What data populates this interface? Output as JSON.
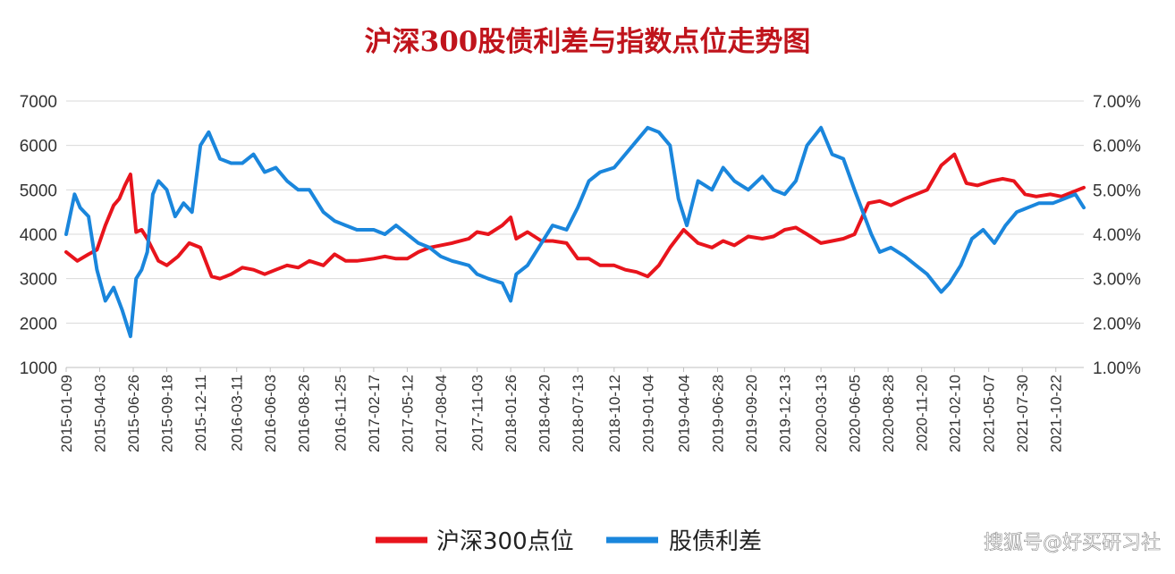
{
  "chart_data": {
    "type": "line",
    "title": "沪深300股债利差与指数点位走势图",
    "xlabel": "",
    "ylabel_left": "",
    "ylabel_right": "",
    "ylim_left": [
      1000,
      7000
    ],
    "yticks_left": [
      "7000",
      "6000",
      "5000",
      "4000",
      "3000",
      "2000",
      "1000"
    ],
    "ylim_right": [
      0.01,
      0.07
    ],
    "yticks_right": [
      "7.00%",
      "6.00%",
      "5.00%",
      "4.00%",
      "3.00%",
      "2.00%",
      "1.00%"
    ],
    "x_start": "2015-01-09",
    "x_end": "2021-12-31",
    "x_tick_labels": [
      "2015-01-09",
      "2015-04-03",
      "2015-06-26",
      "2015-09-18",
      "2015-12-11",
      "2016-03-11",
      "2016-06-03",
      "2016-08-26",
      "2016-11-25",
      "2017-02-17",
      "2017-05-12",
      "2017-08-04",
      "2017-11-03",
      "2018-01-26",
      "2018-04-20",
      "2018-07-13",
      "2018-10-12",
      "2019-01-04",
      "2019-04-04",
      "2019-06-28",
      "2019-09-20",
      "2019-12-13",
      "2020-03-13",
      "2020-06-05",
      "2020-08-28",
      "2020-11-20",
      "2021-02-10",
      "2021-05-07",
      "2021-07-30",
      "2021-10-22"
    ],
    "grid": true,
    "legend_position": "bottom",
    "colors": {
      "index": "#e8141c",
      "spread": "#1a86dc",
      "title": "#c0141c"
    },
    "series": [
      {
        "name": "沪深300点位",
        "axis": "left",
        "x": [
          "2015-01-09",
          "2015-02-06",
          "2015-03-06",
          "2015-03-27",
          "2015-04-17",
          "2015-05-08",
          "2015-05-22",
          "2015-06-05",
          "2015-06-19",
          "2015-07-03",
          "2015-07-17",
          "2015-07-31",
          "2015-08-14",
          "2015-08-28",
          "2015-09-18",
          "2015-10-16",
          "2015-11-13",
          "2015-12-11",
          "2016-01-08",
          "2016-01-29",
          "2016-02-26",
          "2016-03-25",
          "2016-04-22",
          "2016-05-20",
          "2016-06-17",
          "2016-07-15",
          "2016-08-12",
          "2016-09-09",
          "2016-10-14",
          "2016-11-11",
          "2016-12-09",
          "2017-01-06",
          "2017-02-17",
          "2017-03-17",
          "2017-04-14",
          "2017-05-12",
          "2017-06-09",
          "2017-07-07",
          "2017-08-04",
          "2017-09-01",
          "2017-10-13",
          "2017-11-03",
          "2017-12-01",
          "2018-01-05",
          "2018-01-26",
          "2018-02-09",
          "2018-03-09",
          "2018-04-13",
          "2018-05-11",
          "2018-06-15",
          "2018-07-13",
          "2018-08-10",
          "2018-09-07",
          "2018-10-12",
          "2018-11-09",
          "2018-12-07",
          "2019-01-04",
          "2019-02-01",
          "2019-03-01",
          "2019-04-04",
          "2019-05-10",
          "2019-06-14",
          "2019-07-12",
          "2019-08-09",
          "2019-09-13",
          "2019-10-18",
          "2019-11-15",
          "2019-12-13",
          "2020-01-10",
          "2020-02-07",
          "2020-03-13",
          "2020-04-10",
          "2020-05-08",
          "2020-06-05",
          "2020-07-10",
          "2020-08-07",
          "2020-09-04",
          "2020-10-09",
          "2020-11-06",
          "2020-12-04",
          "2021-01-08",
          "2021-02-10",
          "2021-03-12",
          "2021-04-09",
          "2021-05-14",
          "2021-06-11",
          "2021-07-09",
          "2021-08-06",
          "2021-09-03",
          "2021-10-08",
          "2021-11-05",
          "2021-12-03",
          "2021-12-31"
        ],
        "values": [
          3600,
          3400,
          3550,
          3650,
          4200,
          4650,
          4800,
          5100,
          5350,
          4050,
          4100,
          3900,
          3650,
          3400,
          3300,
          3500,
          3800,
          3700,
          3050,
          3000,
          3100,
          3250,
          3200,
          3100,
          3200,
          3300,
          3250,
          3400,
          3300,
          3550,
          3400,
          3400,
          3450,
          3500,
          3450,
          3450,
          3600,
          3700,
          3750,
          3800,
          3900,
          4050,
          4000,
          4200,
          4380,
          3900,
          4050,
          3850,
          3850,
          3800,
          3450,
          3450,
          3300,
          3300,
          3200,
          3150,
          3050,
          3300,
          3700,
          4100,
          3800,
          3700,
          3850,
          3750,
          3950,
          3900,
          3950,
          4100,
          4150,
          4000,
          3800,
          3850,
          3900,
          4000,
          4700,
          4750,
          4650,
          4800,
          4900,
          5000,
          5550,
          5800,
          5150,
          5100,
          5200,
          5250,
          5200,
          4900,
          4850,
          4900,
          4850,
          4950,
          5050
        ]
      },
      {
        "name": "股债利差",
        "axis": "right",
        "x": [
          "2015-01-09",
          "2015-01-30",
          "2015-02-13",
          "2015-03-06",
          "2015-03-27",
          "2015-04-17",
          "2015-05-08",
          "2015-05-29",
          "2015-06-19",
          "2015-07-03",
          "2015-07-17",
          "2015-07-31",
          "2015-08-14",
          "2015-08-28",
          "2015-09-18",
          "2015-10-09",
          "2015-10-30",
          "2015-11-20",
          "2015-12-11",
          "2016-01-01",
          "2016-01-15",
          "2016-01-29",
          "2016-02-26",
          "2016-03-25",
          "2016-04-22",
          "2016-05-20",
          "2016-06-17",
          "2016-07-15",
          "2016-08-12",
          "2016-09-09",
          "2016-10-14",
          "2016-11-11",
          "2016-12-09",
          "2017-01-06",
          "2017-02-17",
          "2017-03-17",
          "2017-04-14",
          "2017-05-12",
          "2017-06-09",
          "2017-07-07",
          "2017-08-04",
          "2017-09-01",
          "2017-10-13",
          "2017-11-03",
          "2017-12-01",
          "2018-01-05",
          "2018-01-26",
          "2018-02-09",
          "2018-03-09",
          "2018-04-13",
          "2018-05-11",
          "2018-06-15",
          "2018-07-13",
          "2018-08-10",
          "2018-09-07",
          "2018-10-12",
          "2018-11-09",
          "2018-12-07",
          "2019-01-04",
          "2019-02-01",
          "2019-03-01",
          "2019-03-22",
          "2019-04-12",
          "2019-05-10",
          "2019-06-14",
          "2019-07-12",
          "2019-08-09",
          "2019-09-13",
          "2019-10-18",
          "2019-11-15",
          "2019-12-13",
          "2020-01-10",
          "2020-02-07",
          "2020-03-13",
          "2020-04-10",
          "2020-05-08",
          "2020-06-05",
          "2020-06-26",
          "2020-07-17",
          "2020-08-07",
          "2020-09-04",
          "2020-10-09",
          "2020-11-06",
          "2020-12-04",
          "2021-01-08",
          "2021-01-29",
          "2021-02-26",
          "2021-03-26",
          "2021-04-23",
          "2021-05-21",
          "2021-06-18",
          "2021-07-16",
          "2021-08-13",
          "2021-09-10",
          "2021-10-15",
          "2021-11-12",
          "2021-12-10",
          "2021-12-31"
        ],
        "values": [
          0.04,
          0.049,
          0.046,
          0.044,
          0.032,
          0.025,
          0.028,
          0.023,
          0.017,
          0.03,
          0.032,
          0.036,
          0.049,
          0.052,
          0.05,
          0.044,
          0.047,
          0.045,
          0.06,
          0.063,
          0.06,
          0.057,
          0.056,
          0.056,
          0.058,
          0.054,
          0.055,
          0.052,
          0.05,
          0.05,
          0.045,
          0.043,
          0.042,
          0.041,
          0.041,
          0.04,
          0.042,
          0.04,
          0.038,
          0.037,
          0.035,
          0.034,
          0.033,
          0.031,
          0.03,
          0.029,
          0.025,
          0.031,
          0.033,
          0.038,
          0.042,
          0.041,
          0.046,
          0.052,
          0.054,
          0.055,
          0.058,
          0.061,
          0.064,
          0.063,
          0.06,
          0.048,
          0.042,
          0.052,
          0.05,
          0.055,
          0.052,
          0.05,
          0.053,
          0.05,
          0.049,
          0.052,
          0.06,
          0.064,
          0.058,
          0.057,
          0.05,
          0.045,
          0.04,
          0.036,
          0.037,
          0.035,
          0.033,
          0.031,
          0.027,
          0.029,
          0.033,
          0.039,
          0.041,
          0.038,
          0.042,
          0.045,
          0.046,
          0.047,
          0.047,
          0.048,
          0.049,
          0.046
        ]
      }
    ]
  },
  "legend": {
    "items": [
      "沪深300点位",
      "股债利差"
    ]
  },
  "watermark": "搜狐号@好买研习社"
}
